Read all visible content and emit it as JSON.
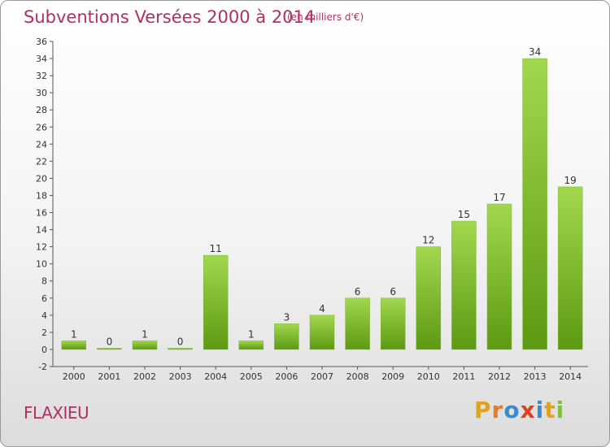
{
  "header": {
    "title": "Subventions Versées 2000 à 2014",
    "subtitle": "(en milliers d'€)"
  },
  "footer": {
    "commune": "FLAXIEU",
    "logo": "Proxiti"
  },
  "colors": {
    "accent_text": "#b03060",
    "bar_light": "#a2d84e",
    "bar_dark": "#5c9a12",
    "logo_letters": [
      "#e0a020",
      "#f07820",
      "#3a8ad0",
      "#e04020",
      "#3a8ad0",
      "#e0a020",
      "#80c040"
    ]
  },
  "chart_data": {
    "type": "bar",
    "categories": [
      "2000",
      "2001",
      "2002",
      "2003",
      "2004",
      "2005",
      "2006",
      "2007",
      "2008",
      "2009",
      "2010",
      "2011",
      "2012",
      "2013",
      "2014"
    ],
    "values": [
      1,
      0,
      1,
      0,
      11,
      1,
      3,
      4,
      6,
      6,
      12,
      15,
      17,
      34,
      19
    ],
    "ylim": [
      -2,
      36
    ],
    "yticks": [
      -2,
      0,
      2,
      4,
      6,
      8,
      10,
      12,
      14,
      16,
      18,
      20,
      22,
      24,
      26,
      28,
      30,
      32,
      34,
      36
    ],
    "grid": false,
    "data_labels": true
  }
}
